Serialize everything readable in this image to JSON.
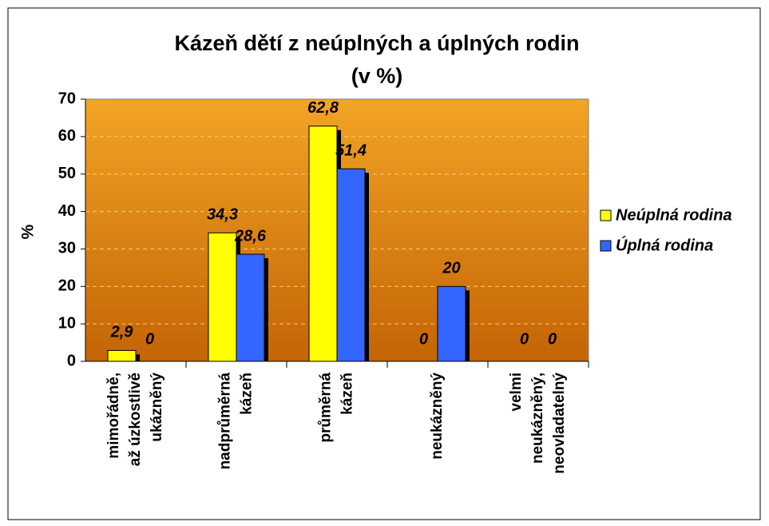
{
  "chart_data": {
    "type": "bar",
    "title": "Kázeň dětí z neúplných a úplných rodin",
    "subtitle": "(v %)",
    "y_label": "%",
    "categories": [
      [
        "mimořádně,",
        "až úzkostlivě",
        "ukázněný"
      ],
      [
        "nadprůměrná",
        "kázeň"
      ],
      [
        "průměrná",
        "kázeň"
      ],
      [
        "neukázněný"
      ],
      [
        "velmi",
        "neukázněný,",
        "neovladatelný"
      ]
    ],
    "series": [
      {
        "name": "Neúplná rodina",
        "color": "#ffff00",
        "values": [
          2.9,
          34.3,
          62.8,
          0,
          0
        ],
        "value_labels": [
          "2,9",
          "34,3",
          "62,8",
          "0",
          "0"
        ]
      },
      {
        "name": "Úplná rodina",
        "color": "#3366ff",
        "values": [
          0,
          28.6,
          51.4,
          20,
          0
        ],
        "value_labels": [
          "0",
          "28,6",
          "51,4",
          "20",
          "0"
        ]
      }
    ],
    "ylim": [
      0,
      70
    ],
    "yticks": [
      0,
      10,
      20,
      30,
      40,
      50,
      60,
      70
    ],
    "grid": true,
    "legend": "right"
  }
}
